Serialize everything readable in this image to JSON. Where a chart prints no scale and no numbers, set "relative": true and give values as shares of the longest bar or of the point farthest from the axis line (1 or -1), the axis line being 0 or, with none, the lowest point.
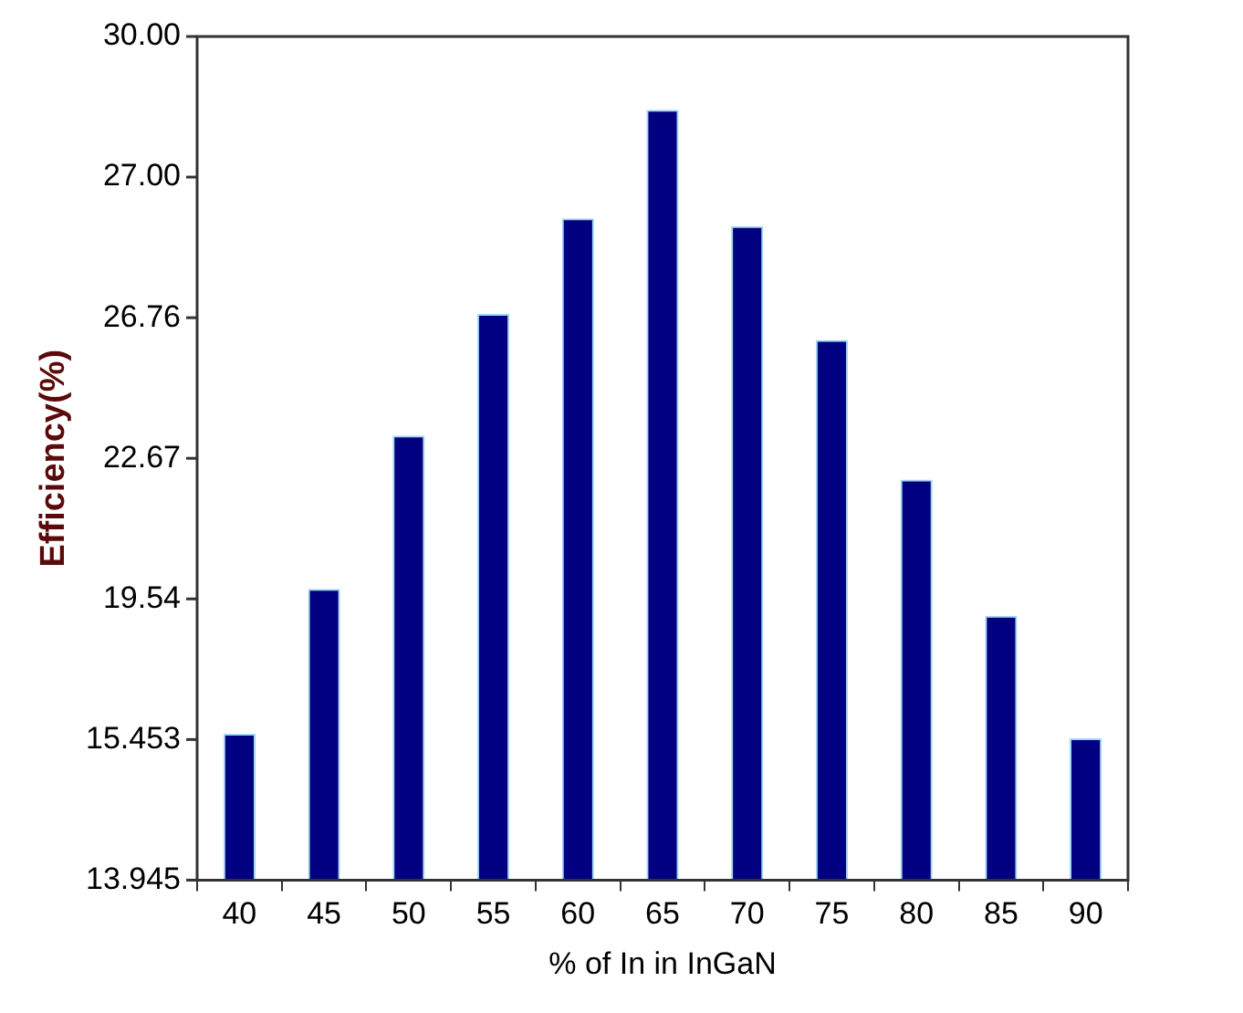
{
  "chart_data": {
    "type": "bar",
    "xlabel": "% of In in InGaN",
    "ylabel": "Efficiency(%)",
    "categories": [
      "40",
      "45",
      "50",
      "55",
      "60",
      "65",
      "70",
      "75",
      "80",
      "85",
      "90"
    ],
    "values": [
      0.19,
      0.378,
      0.577,
      0.735,
      0.859,
      1,
      0.849,
      0.701,
      0.52,
      0.343,
      0.184
    ],
    "relative": true,
    "color": "#000080",
    "annotations": [
      "30.00",
      "27.00",
      "26.76",
      "22.67",
      "19.54",
      "15.453",
      "13.945"
    ],
    "grid": false,
    "legend": false
  }
}
